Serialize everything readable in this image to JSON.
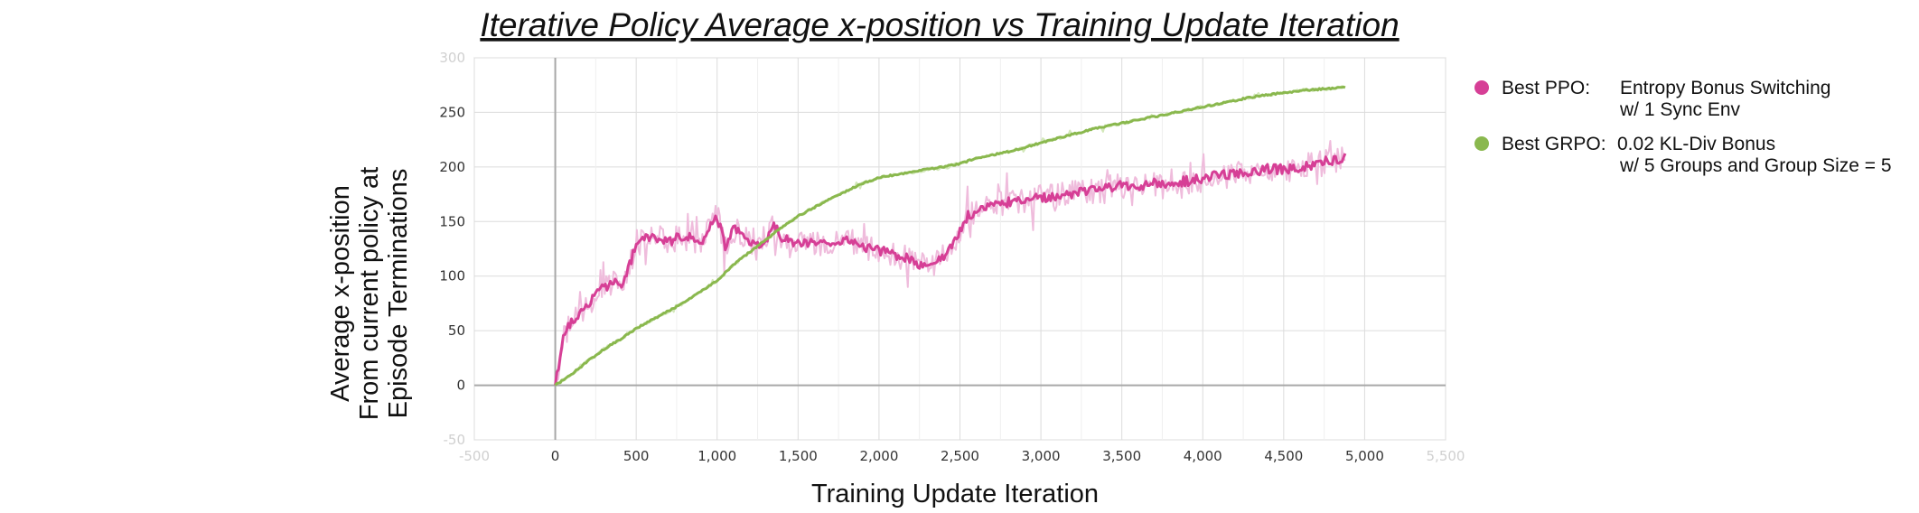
{
  "chart_data": {
    "type": "line",
    "title": "Iterative Policy Average x-position vs Training Update Iteration",
    "xlabel": "Training Update Iteration",
    "ylabel": [
      "Average x-position",
      "From current policy at",
      "Episode Terminations"
    ],
    "xlim": [
      -500,
      5500
    ],
    "ylim": [
      -50,
      300
    ],
    "xticks": [
      0,
      500,
      1000,
      1500,
      2000,
      2500,
      3000,
      3500,
      4000,
      4500,
      5000
    ],
    "xtick_labels": [
      "0",
      "500",
      "1,000",
      "1,500",
      "2,000",
      "2,500",
      "3,000",
      "3,500",
      "4,000",
      "4,500",
      "5,000"
    ],
    "xticks_faint": [
      -500,
      5500
    ],
    "xtick_labels_faint": [
      "-500",
      "5,500"
    ],
    "yticks": [
      0,
      50,
      100,
      150,
      200,
      250
    ],
    "ytick_labels": [
      "0",
      "50",
      "100",
      "150",
      "200",
      "250"
    ],
    "yticks_faint": [
      -50,
      300
    ],
    "ytick_labels_faint": [
      "-50",
      "300"
    ],
    "grid": true,
    "legend_position": "right",
    "series": [
      {
        "name": "Best PPO:",
        "description": [
          "Entropy Bonus Switching",
          "w/ 1 Sync Env"
        ],
        "color": "#d63f96",
        "raw_color": "#efbcdc",
        "x": [
          0,
          50,
          100,
          200,
          300,
          380,
          400,
          450,
          500,
          600,
          700,
          800,
          900,
          1000,
          1050,
          1100,
          1200,
          1300,
          1350,
          1400,
          1500,
          1600,
          1700,
          1800,
          1900,
          2000,
          2100,
          2200,
          2300,
          2400,
          2500,
          2550,
          2600,
          2700,
          2800,
          2900,
          3000,
          3100,
          3200,
          3300,
          3400,
          3500,
          3600,
          3700,
          3800,
          3900,
          4000,
          4100,
          4200,
          4300,
          4400,
          4500,
          4600,
          4700,
          4800,
          4880
        ],
        "y": [
          0,
          45,
          58,
          75,
          90,
          95,
          88,
          105,
          130,
          137,
          131,
          138,
          130,
          155,
          128,
          143,
          133,
          128,
          148,
          135,
          130,
          132,
          128,
          133,
          127,
          123,
          120,
          115,
          108,
          118,
          140,
          155,
          160,
          165,
          168,
          170,
          172,
          173,
          176,
          178,
          180,
          183,
          182,
          185,
          186,
          187,
          190,
          192,
          193,
          196,
          198,
          198,
          200,
          203,
          206,
          208
        ]
      },
      {
        "name": "Best GRPO:",
        "description": [
          "0.02 KL-Div Bonus",
          "w/ 5 Groups and Group Size = 5"
        ],
        "color": "#8ab84e",
        "raw_color": "#d3e8ba",
        "x": [
          0,
          100,
          200,
          300,
          400,
          500,
          600,
          700,
          800,
          900,
          1000,
          1100,
          1200,
          1300,
          1400,
          1500,
          1600,
          1700,
          1800,
          1900,
          2000,
          2100,
          2200,
          2300,
          2400,
          2500,
          2600,
          2700,
          2800,
          2900,
          3000,
          3100,
          3200,
          3300,
          3400,
          3500,
          3600,
          3700,
          3800,
          3900,
          4000,
          4100,
          4200,
          4300,
          4400,
          4500,
          4600,
          4700,
          4800,
          4880
        ],
        "y": [
          0,
          10,
          22,
          33,
          42,
          52,
          60,
          68,
          76,
          86,
          96,
          110,
          122,
          133,
          145,
          155,
          163,
          171,
          178,
          185,
          190,
          193,
          195,
          198,
          200,
          203,
          208,
          211,
          214,
          218,
          222,
          226,
          230,
          234,
          237,
          240,
          243,
          246,
          249,
          252,
          255,
          258,
          261,
          264,
          266,
          268,
          270,
          271,
          272,
          273
        ]
      }
    ]
  }
}
